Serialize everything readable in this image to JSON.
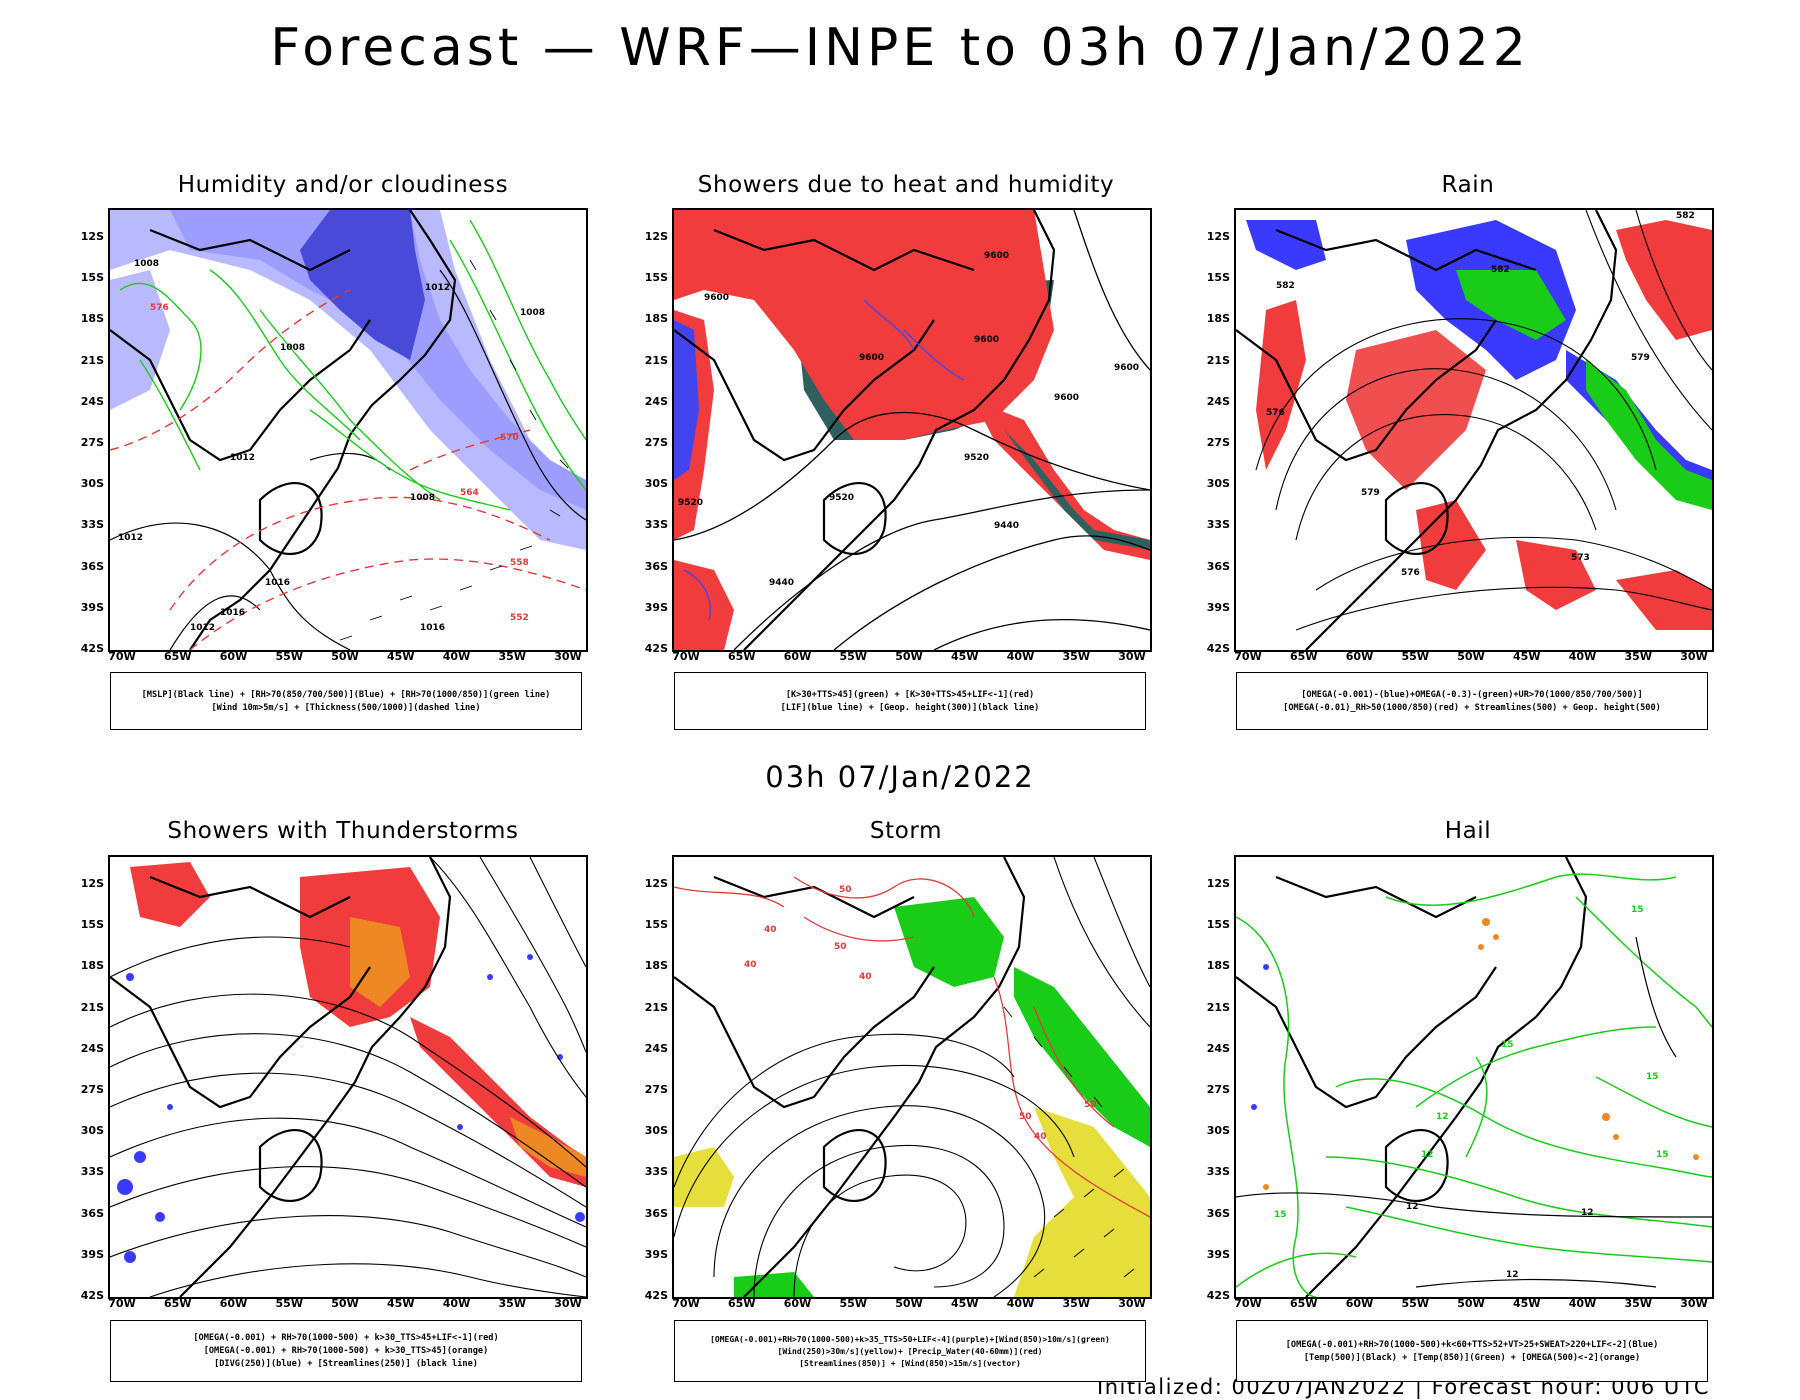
{
  "title": "Forecast — WRF—INPE to 03h 07/Jan/2022",
  "subtitle": "03h 07/Jan/2022",
  "footer": "Initialized: 00Z07JAN2022 | Forecast hour: 006 UTC",
  "axes": {
    "lat_ticks": [
      "12S",
      "15S",
      "18S",
      "21S",
      "24S",
      "27S",
      "30S",
      "33S",
      "36S",
      "39S",
      "42S"
    ],
    "lon_ticks": [
      "70W",
      "65W",
      "60W",
      "55W",
      "50W",
      "45W",
      "40W",
      "35W",
      "30W"
    ]
  },
  "colors": {
    "blue": "#3a3aff",
    "light_blue": "#9d9dff",
    "green": "#18cc18",
    "red": "#f03c3c",
    "orange": "#ee8822",
    "yellow": "#e6de3a",
    "dark_teal": "#2f5f5f",
    "purple": "#8a3ae0"
  },
  "panels": [
    {
      "id": "humidity",
      "title": "Humidity and/or cloudiness",
      "legend": [
        "[MSLP](Black line) + [RH>70(850/700/500)](Blue) + [RH>70(1000/850)](green line)",
        "[Wind 10m>5m/s] + [Thickness(500/1000)](dashed line)"
      ],
      "labels": [
        "1008",
        "1012",
        "1008",
        "1016",
        "1012",
        "1008",
        "1012",
        "1016",
        "1016",
        "1012",
        "1008",
        "576",
        "570",
        "564",
        "558",
        "552"
      ]
    },
    {
      "id": "showers-heat",
      "title": "Showers due to heat and humidity",
      "legend": [
        "[K>30+TTS>45](green) + [K>30+TTS>45+LIF<-1](red)",
        "[LIF](blue line) + [Geop. height(300)](black line)"
      ],
      "labels": [
        "9600",
        "9600",
        "9600",
        "9600",
        "9600",
        "9600",
        "9520",
        "9520",
        "9440",
        "9440",
        "9520"
      ]
    },
    {
      "id": "rain",
      "title": "Rain",
      "legend": [
        "[OMEGA(-0.001)-(blue)+OMEGA(-0.3)-(green)+UR>70(1000/850/700/500)]",
        "[OMEGA(-0.01)_RH>50(1000/850)(red) + Streamlines(500) + Geop. height(500)"
      ],
      "labels": [
        "582",
        "582",
        "579",
        "576",
        "573",
        "582",
        "579",
        "576"
      ]
    },
    {
      "id": "thunderstorms",
      "title": "Showers with Thunderstorms",
      "legend": [
        "[OMEGA(-0.001) + RH>70(1000-500) + k>30_TTS>45+LIF<-1](red)",
        "[OMEGA(-0.001) + RH>70(1000-500) + k>30_TTS>45](orange)",
        "[DIVG(250)](blue) + [Streamlines(250)] (black line)"
      ],
      "labels": []
    },
    {
      "id": "storm",
      "title": "Storm",
      "legend": [
        "[OMEGA(-0.001)+RH>70(1000-500)+k>35_TTS>50+LIF<-4](purple)+[Wind(850)>10m/s](green)",
        "[Wind(250)>30m/s](yellow)+ [Precip_Water(40-60mm)](red)",
        "[Streamlines(850)] + [Wind(850)>15m/s](vector)"
      ],
      "labels": [
        "50",
        "40",
        "50",
        "40",
        "50",
        "40",
        "50",
        "40"
      ]
    },
    {
      "id": "hail",
      "title": "Hail",
      "legend": [
        "[OMEGA(-0.001)+RH>70(1000-500)+k<60+TTS>52+VT>25+SWEAT>220+LIF<-2](Blue)",
        "[Temp(500)](Black) + [Temp(850)](Green) + [OMEGA(500)<-2](orange)"
      ],
      "labels": [
        "15",
        "15",
        "12",
        "12",
        "12",
        "12",
        "15",
        "12",
        "15",
        "15"
      ]
    }
  ]
}
